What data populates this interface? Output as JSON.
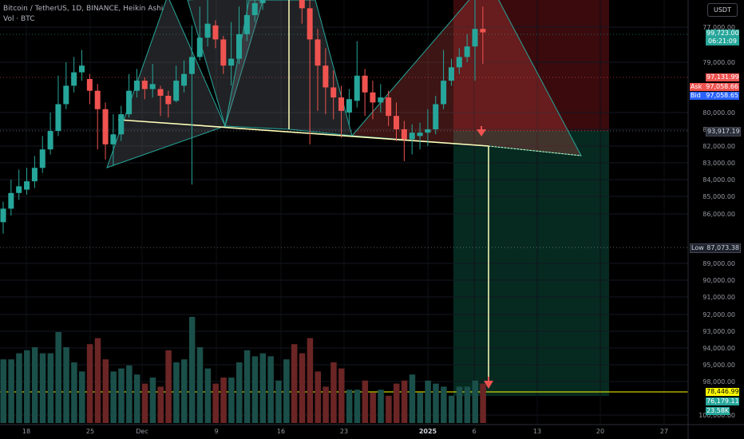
{
  "legend": {
    "title": "Bitcoin / TetherUS, 1D, BINANCE, Heikin Ashi",
    "volume_label": "Vol · BTC"
  },
  "toolbar": {
    "currency_label": "USDT"
  },
  "price_scale": {
    "ticks": [
      "100,000.00",
      "98,000.00",
      "95,000.00",
      "94,000.00",
      "93,000.00",
      "92,000.00",
      "91,000.00",
      "90,000.00",
      "89,000.00",
      "86,000.00",
      "85,000.00",
      "84,000.00",
      "83,000.00",
      "82,000.00",
      "81,000.00",
      "80,000.00",
      "79,000.00",
      "77,000.00"
    ],
    "tags": {
      "last_price": "99,723.00",
      "countdown": "06:21:09",
      "level_97k": "97,131.99",
      "ask_label": "Ask",
      "ask_value": "97,058.66",
      "bid_label": "Bid",
      "bid_value": "97,058.65",
      "neckline": "93,917.19",
      "low_label": "Low",
      "low_value": "87,073.38",
      "target": "78,446.99",
      "level_76k": "76,179.11",
      "volume": "23.58K"
    }
  },
  "time_scale": {
    "labels": [
      "18",
      "25",
      "Dec",
      "9",
      "16",
      "23",
      "2025",
      "6",
      "13",
      "20",
      "27"
    ]
  },
  "colors": {
    "up": "#26a69a",
    "down": "#ef5350",
    "up_dark": "#1b4f4a",
    "down_dark": "#6b2525",
    "neckline": "#ffffbb",
    "pattern_stroke": "#26a69a",
    "target_line": "#ffff00",
    "stop_zone": "#3a0a0d",
    "profit_zone": "#062a20",
    "bid": "#2962ff"
  },
  "chart_data": {
    "type": "candlestick",
    "title": "Bitcoin / TetherUS, 1D, BINANCE, Heikin Ashi",
    "yscale_ticks": [
      77000,
      79000,
      80000,
      81000,
      82000,
      83000,
      84000,
      85000,
      86000,
      89000,
      90000,
      91000,
      92000,
      93000,
      94000,
      95000,
      98000,
      100000
    ],
    "x_labels": [
      "18",
      "25",
      "Dec",
      "9",
      "16",
      "23",
      "2025",
      "6",
      "13",
      "20",
      "27"
    ],
    "candles": [
      {
        "o": 88500,
        "c": 89300,
        "h": 89700,
        "l": 87800
      },
      {
        "o": 89300,
        "c": 90200,
        "h": 91000,
        "l": 88900
      },
      {
        "o": 90200,
        "c": 90600,
        "h": 91600,
        "l": 89800
      },
      {
        "o": 90400,
        "c": 90900,
        "h": 91700,
        "l": 90100
      },
      {
        "o": 90900,
        "c": 91700,
        "h": 92400,
        "l": 90500
      },
      {
        "o": 91700,
        "c": 92800,
        "h": 93600,
        "l": 91400
      },
      {
        "o": 92800,
        "c": 93900,
        "h": 95000,
        "l": 92500
      },
      {
        "o": 93900,
        "c": 95500,
        "h": 97200,
        "l": 93600
      },
      {
        "o": 95500,
        "c": 96600,
        "h": 98000,
        "l": 95200
      },
      {
        "o": 96600,
        "c": 97400,
        "h": 98300,
        "l": 96200
      },
      {
        "o": 97400,
        "c": 97800,
        "h": 98700,
        "l": 96900
      },
      {
        "o": 97000,
        "c": 96300,
        "h": 97300,
        "l": 95500
      },
      {
        "o": 96300,
        "c": 95200,
        "h": 96700,
        "l": 92800
      },
      {
        "o": 95200,
        "c": 93100,
        "h": 95600,
        "l": 92200
      },
      {
        "o": 93100,
        "c": 93700,
        "h": 94900,
        "l": 91800
      },
      {
        "o": 93700,
        "c": 94900,
        "h": 95400,
        "l": 93300
      },
      {
        "o": 94900,
        "c": 96300,
        "h": 97300,
        "l": 94700
      },
      {
        "o": 96300,
        "c": 96900,
        "h": 97600,
        "l": 95900
      },
      {
        "o": 96900,
        "c": 96400,
        "h": 97100,
        "l": 95800
      },
      {
        "o": 96400,
        "c": 96700,
        "h": 97900,
        "l": 95900
      },
      {
        "o": 96400,
        "c": 96000,
        "h": 96600,
        "l": 94800
      },
      {
        "o": 96000,
        "c": 95500,
        "h": 96300,
        "l": 94700
      },
      {
        "o": 95700,
        "c": 96900,
        "h": 97800,
        "l": 95600
      },
      {
        "o": 96600,
        "c": 97300,
        "h": 98100,
        "l": 96200
      },
      {
        "o": 97300,
        "c": 98300,
        "h": 100100,
        "l": 90700
      },
      {
        "o": 98300,
        "c": 99400,
        "h": 101200,
        "l": 98100
      },
      {
        "o": 99400,
        "c": 100200,
        "h": 101600,
        "l": 98900
      },
      {
        "o": 100100,
        "c": 99300,
        "h": 100400,
        "l": 98800
      },
      {
        "o": 99300,
        "c": 97800,
        "h": 99500,
        "l": 97300
      },
      {
        "o": 97800,
        "c": 98200,
        "h": 100300,
        "l": 96600
      },
      {
        "o": 98200,
        "c": 99600,
        "h": 101200,
        "l": 97900
      },
      {
        "o": 99600,
        "c": 100700,
        "h": 102200,
        "l": 99200
      },
      {
        "o": 100700,
        "c": 101400,
        "h": 102800,
        "l": 100300
      },
      {
        "o": 101400,
        "c": 102200,
        "h": 103700,
        "l": 101000
      },
      {
        "o": 102200,
        "c": 102900,
        "h": 104200,
        "l": 101800
      },
      {
        "o": 102900,
        "c": 103600,
        "h": 105200,
        "l": 102500
      },
      {
        "o": 103600,
        "c": 104500,
        "h": 106300,
        "l": 103200
      },
      {
        "o": 104600,
        "c": 103200,
        "h": 104900,
        "l": 101800
      },
      {
        "o": 103200,
        "c": 101100,
        "h": 103600,
        "l": 100200
      },
      {
        "o": 101100,
        "c": 99300,
        "h": 101700,
        "l": 93100
      },
      {
        "o": 99300,
        "c": 97800,
        "h": 99900,
        "l": 95100
      },
      {
        "o": 97800,
        "c": 96500,
        "h": 98800,
        "l": 94900
      },
      {
        "o": 96500,
        "c": 95900,
        "h": 97500,
        "l": 94600
      },
      {
        "o": 95900,
        "c": 95100,
        "h": 96600,
        "l": 93500
      },
      {
        "o": 95000,
        "c": 95800,
        "h": 96400,
        "l": 94200
      },
      {
        "o": 95700,
        "c": 97200,
        "h": 99200,
        "l": 95300
      },
      {
        "o": 97200,
        "c": 96200,
        "h": 97600,
        "l": 94800
      },
      {
        "o": 96200,
        "c": 95600,
        "h": 96900,
        "l": 94600
      },
      {
        "o": 95600,
        "c": 95900,
        "h": 96700,
        "l": 95000
      },
      {
        "o": 95900,
        "c": 94800,
        "h": 96300,
        "l": 94200
      },
      {
        "o": 94800,
        "c": 94000,
        "h": 95600,
        "l": 93300
      },
      {
        "o": 94000,
        "c": 93400,
        "h": 94500,
        "l": 92100
      },
      {
        "o": 93400,
        "c": 93800,
        "h": 94300,
        "l": 92500
      },
      {
        "o": 93600,
        "c": 93800,
        "h": 94400,
        "l": 92800
      },
      {
        "o": 93800,
        "c": 94000,
        "h": 95200,
        "l": 93000
      },
      {
        "o": 94000,
        "c": 95500,
        "h": 96000,
        "l": 93700
      },
      {
        "o": 95500,
        "c": 96900,
        "h": 98700,
        "l": 95200
      },
      {
        "o": 96900,
        "c": 97700,
        "h": 98200,
        "l": 96600
      },
      {
        "o": 97700,
        "c": 98300,
        "h": 98800,
        "l": 97300
      },
      {
        "o": 98300,
        "c": 98900,
        "h": 99600,
        "l": 98000
      },
      {
        "o": 98900,
        "c": 99900,
        "h": 102300,
        "l": 96900
      },
      {
        "o": 99900,
        "c": 99700,
        "h": 101200,
        "l": 97900
      }
    ],
    "volume": [
      21,
      21,
      23,
      24,
      25,
      23,
      23,
      30,
      25,
      20,
      17,
      26,
      28,
      21,
      17,
      18,
      19,
      16,
      13,
      15,
      12,
      24,
      20,
      21,
      35,
      25,
      18,
      13,
      15,
      15,
      20,
      24,
      22,
      23,
      22,
      14,
      21,
      26,
      23,
      28,
      17,
      12,
      20,
      18,
      11,
      11,
      14,
      10,
      11,
      9,
      13,
      14,
      16,
      10,
      14,
      13,
      12,
      9,
      12,
      12,
      14,
      13
    ],
    "annotations": {
      "neckline_label": "93,917.19",
      "target_label": "78,446.99",
      "low_label": "87,073.38"
    }
  }
}
